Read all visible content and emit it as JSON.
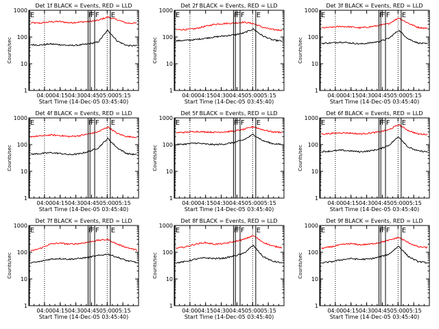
{
  "chart_data": [
    {
      "type": "line",
      "title": "Det 1f BLACK = Events, RED = LLD",
      "xlabel": "Start Time (14-Dec-05 03:45:40)",
      "ylabel": "Counts/sec",
      "xticks": [
        "04:00",
        "04:15",
        "04:30",
        "04:45",
        "05:00",
        "05:15"
      ],
      "yticks": [
        "1",
        "10",
        "100",
        "1000"
      ],
      "ylim": [
        1,
        1000
      ],
      "yscale": "log",
      "markers": [
        "E",
        "F",
        "F",
        "F",
        "E"
      ],
      "series": [
        {
          "color": "#ff0000",
          "values": [
            340,
            330,
            370,
            380,
            340,
            360,
            380,
            420,
            560,
            440,
            330,
            330
          ]
        },
        {
          "color": "#000000",
          "values": [
            52,
            50,
            55,
            52,
            48,
            50,
            55,
            65,
            180,
            70,
            48,
            47
          ]
        }
      ]
    },
    {
      "type": "line",
      "title": "Det 2f BLACK = Events, RED = LLD",
      "xlabel": "Start Time (14-Dec-05 03:45:40)",
      "ylabel": "Counts/sec",
      "xticks": [
        "04:00",
        "04:15",
        "04:30",
        "04:45",
        "05:00",
        "05:15"
      ],
      "yticks": [
        "1",
        "10",
        "100",
        "1000"
      ],
      "ylim": [
        1,
        1000
      ],
      "yscale": "log",
      "markers": [
        "E",
        "F",
        "F",
        "F",
        "E"
      ],
      "series": [
        {
          "color": "#ff0000",
          "values": [
            190,
            190,
            205,
            250,
            300,
            320,
            330,
            360,
            320,
            230,
            190,
            180
          ]
        },
        {
          "color": "#000000",
          "values": [
            72,
            75,
            80,
            90,
            100,
            110,
            120,
            140,
            200,
            110,
            78,
            70
          ]
        }
      ]
    },
    {
      "type": "line",
      "title": "Det 3f BLACK = Events, RED = LLD",
      "xlabel": "Start Time (14-Dec-05 03:45:40)",
      "ylabel": "Counts/sec",
      "xticks": [
        "04:00",
        "04:15",
        "04:30",
        "04:45",
        "05:00",
        "05:15"
      ],
      "yticks": [
        "1",
        "10",
        "100",
        "1000"
      ],
      "ylim": [
        1,
        1000
      ],
      "yscale": "log",
      "markers": [
        "E",
        "F",
        "F",
        "F",
        "E"
      ],
      "series": [
        {
          "color": "#ff0000",
          "values": [
            220,
            230,
            250,
            240,
            220,
            240,
            270,
            320,
            520,
            330,
            230,
            210
          ]
        },
        {
          "color": "#000000",
          "values": [
            58,
            60,
            65,
            60,
            55,
            60,
            68,
            90,
            180,
            85,
            60,
            55
          ]
        }
      ]
    },
    {
      "type": "line",
      "title": "Det 4f BLACK = Events, RED = LLD",
      "xlabel": "Start Time (14-Dec-05 03:45:40)",
      "ylabel": "Counts/sec",
      "xticks": [
        "04:00",
        "04:15",
        "04:30",
        "04:45",
        "05:00",
        "05:15"
      ],
      "yticks": [
        "1",
        "10",
        "100",
        "1000"
      ],
      "ylim": [
        1,
        1000
      ],
      "yscale": "log",
      "markers": [
        "E",
        "F",
        "F",
        "F",
        "E"
      ],
      "series": [
        {
          "color": "#ff0000",
          "values": [
            200,
            210,
            230,
            220,
            200,
            215,
            250,
            300,
            460,
            260,
            200,
            190
          ]
        },
        {
          "color": "#000000",
          "values": [
            44,
            46,
            50,
            47,
            42,
            45,
            55,
            75,
            170,
            75,
            46,
            42
          ]
        }
      ]
    },
    {
      "type": "line",
      "title": "Det 5f BLACK = Events, RED = LLD",
      "xlabel": "Start Time (14-Dec-05 03:45:40)",
      "ylabel": "Counts/sec",
      "xticks": [
        "04:00",
        "04:15",
        "04:30",
        "04:45",
        "05:00",
        "05:15"
      ],
      "yticks": [
        "1",
        "10",
        "100",
        "1000"
      ],
      "ylim": [
        1,
        1000
      ],
      "yscale": "log",
      "markers": [
        "E",
        "F",
        "F",
        "F",
        "E"
      ],
      "series": [
        {
          "color": "#ff0000",
          "values": [
            280,
            290,
            310,
            300,
            290,
            300,
            320,
            370,
            470,
            360,
            300,
            290
          ]
        },
        {
          "color": "#000000",
          "values": [
            100,
            105,
            115,
            105,
            100,
            105,
            120,
            150,
            240,
            140,
            110,
            100
          ]
        }
      ]
    },
    {
      "type": "line",
      "title": "Det 6f BLACK = Events, RED = LLD",
      "xlabel": "Start Time (14-Dec-05 03:45:40)",
      "ylabel": "Counts/sec",
      "xticks": [
        "04:00",
        "04:15",
        "04:30",
        "04:45",
        "05:00",
        "05:15"
      ],
      "yticks": [
        "1",
        "10",
        "100",
        "1000"
      ],
      "ylim": [
        1,
        1000
      ],
      "yscale": "log",
      "markers": [
        "E",
        "F",
        "F",
        "F",
        "E"
      ],
      "series": [
        {
          "color": "#ff0000",
          "values": [
            250,
            260,
            280,
            270,
            250,
            270,
            300,
            360,
            560,
            340,
            250,
            240
          ]
        },
        {
          "color": "#000000",
          "values": [
            55,
            57,
            62,
            58,
            54,
            58,
            68,
            95,
            200,
            80,
            58,
            54
          ]
        }
      ]
    },
    {
      "type": "line",
      "title": "Det 7f BLACK = Events, RED = LLD",
      "xlabel": "Start Time (14-Dec-05 03:45:40)",
      "ylabel": "Counts/sec",
      "xticks": [
        "04:00",
        "04:15",
        "04:30",
        "04:45",
        "05:00",
        "05:15"
      ],
      "yticks": [
        "1",
        "10",
        "100",
        "1000"
      ],
      "ylim": [
        1,
        1000
      ],
      "yscale": "log",
      "markers": [
        "E",
        "F",
        "F",
        "F",
        "E"
      ],
      "series": [
        {
          "color": "#ff0000",
          "values": [
            110,
            140,
            200,
            220,
            200,
            210,
            240,
            280,
            300,
            200,
            150,
            120
          ]
        },
        {
          "color": "#000000",
          "values": [
            40,
            45,
            55,
            58,
            55,
            58,
            65,
            75,
            85,
            65,
            48,
            42
          ]
        }
      ]
    },
    {
      "type": "line",
      "title": "Det 8f BLACK = Events, RED = LLD",
      "xlabel": "Start Time (14-Dec-05 03:45:40)",
      "ylabel": "Counts/sec",
      "xticks": [
        "04:00",
        "04:15",
        "04:30",
        "04:45",
        "05:00",
        "05:15"
      ],
      "yticks": [
        "1",
        "10",
        "100",
        "1000"
      ],
      "ylim": [
        1,
        1000
      ],
      "yscale": "log",
      "markers": [
        "E",
        "F",
        "F",
        "F",
        "E"
      ],
      "series": [
        {
          "color": "#ff0000",
          "values": [
            140,
            160,
            200,
            230,
            200,
            210,
            250,
            300,
            420,
            240,
            170,
            150
          ]
        },
        {
          "color": "#000000",
          "values": [
            40,
            45,
            55,
            62,
            58,
            60,
            72,
            90,
            180,
            70,
            46,
            40
          ]
        }
      ]
    },
    {
      "type": "line",
      "title": "Det 9f BLACK = Events, RED = LLD",
      "xlabel": "Start Time (14-Dec-05 03:45:40)",
      "ylabel": "Counts/sec",
      "xticks": [
        "04:00",
        "04:15",
        "04:30",
        "04:45",
        "05:00",
        "05:15"
      ],
      "yticks": [
        "1",
        "10",
        "100",
        "1000"
      ],
      "ylim": [
        1,
        1000
      ],
      "yscale": "log",
      "markers": [
        "E",
        "F",
        "F",
        "F",
        "E"
      ],
      "series": [
        {
          "color": "#ff0000",
          "values": [
            140,
            160,
            190,
            210,
            190,
            200,
            230,
            280,
            360,
            230,
            160,
            150
          ]
        },
        {
          "color": "#000000",
          "values": [
            40,
            44,
            52,
            58,
            54,
            56,
            66,
            85,
            170,
            70,
            45,
            40
          ]
        }
      ]
    }
  ]
}
